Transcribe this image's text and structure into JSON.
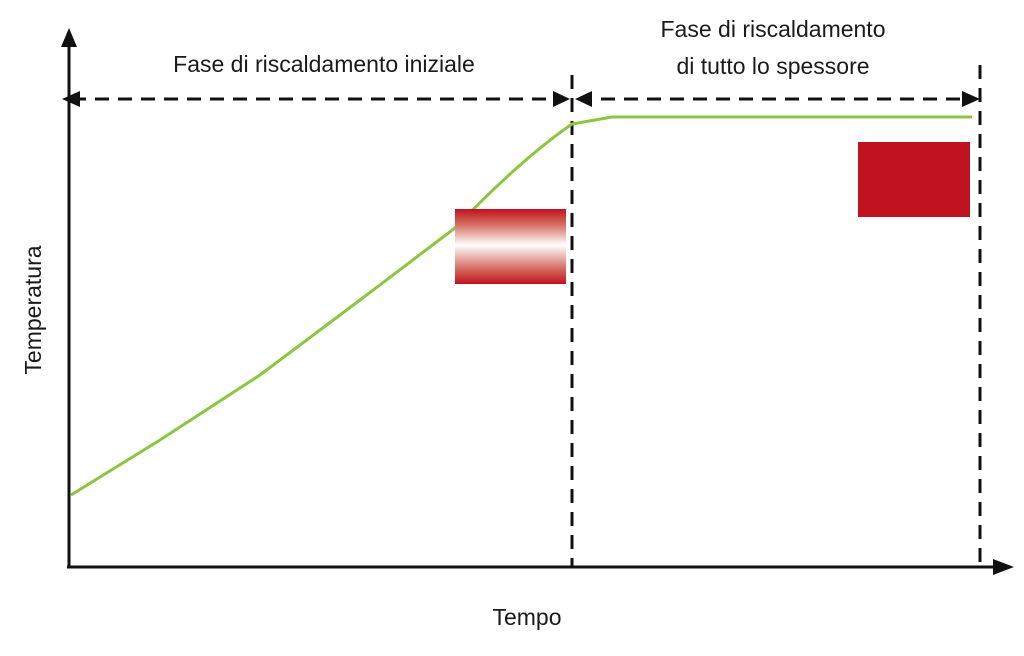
{
  "diagram": {
    "phases": [
      {
        "label_lines": [
          "Fase di riscaldamento iniziale"
        ]
      },
      {
        "label_lines": [
          "Fase di riscaldamento",
          "di tutto lo spessore"
        ]
      }
    ],
    "axes": {
      "x_label": "Tempo",
      "y_label": "Temperatura"
    },
    "colors": {
      "axis": "#111111",
      "curve": "#8cc63f",
      "hot": "#c0121f",
      "cold": "#ffffff"
    }
  }
}
